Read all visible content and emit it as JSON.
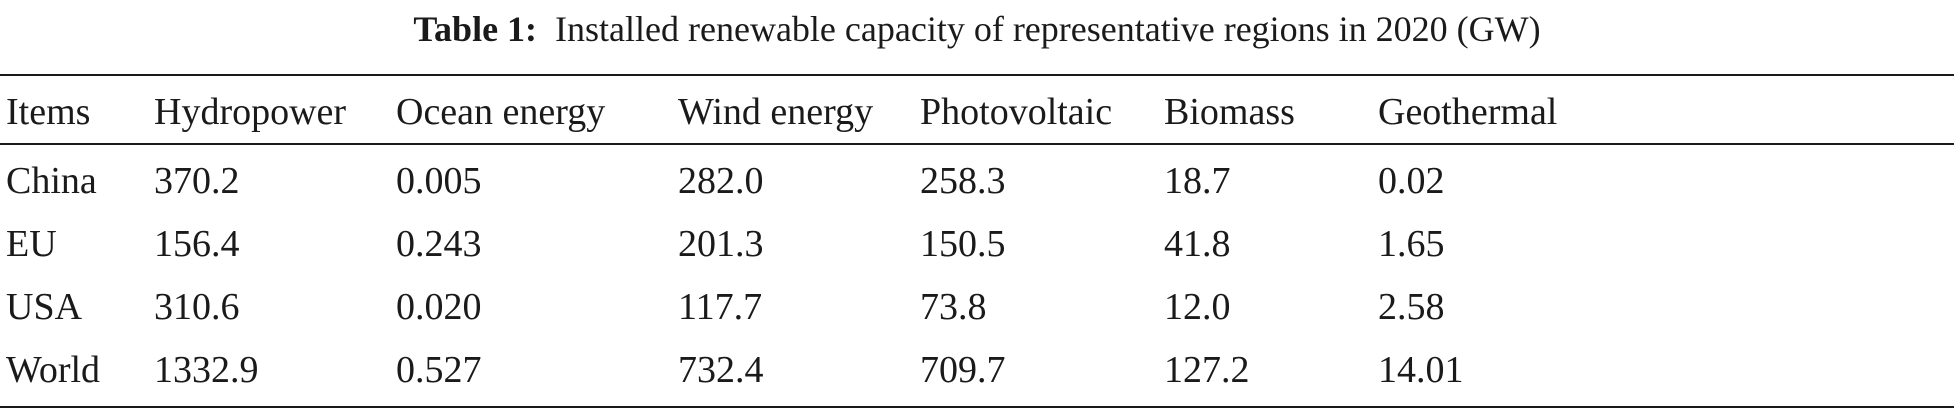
{
  "caption": {
    "label": "Table 1:",
    "text": "Installed renewable capacity of representative regions in 2020 (GW)"
  },
  "table": {
    "headers": [
      "Items",
      "Hydropower",
      "Ocean energy",
      "Wind energy",
      "Photovoltaic",
      "Biomass",
      "Geothermal"
    ],
    "rows": [
      [
        "China",
        "370.2",
        "0.005",
        "282.0",
        "258.3",
        "18.7",
        "0.02"
      ],
      [
        "EU",
        "156.4",
        "0.243",
        "201.3",
        "150.5",
        "41.8",
        "1.65"
      ],
      [
        "USA",
        "310.6",
        "0.020",
        "117.7",
        "73.8",
        "12.0",
        "2.58"
      ],
      [
        "World",
        "1332.9",
        "0.527",
        "732.4",
        "709.7",
        "127.2",
        "14.01"
      ]
    ]
  }
}
